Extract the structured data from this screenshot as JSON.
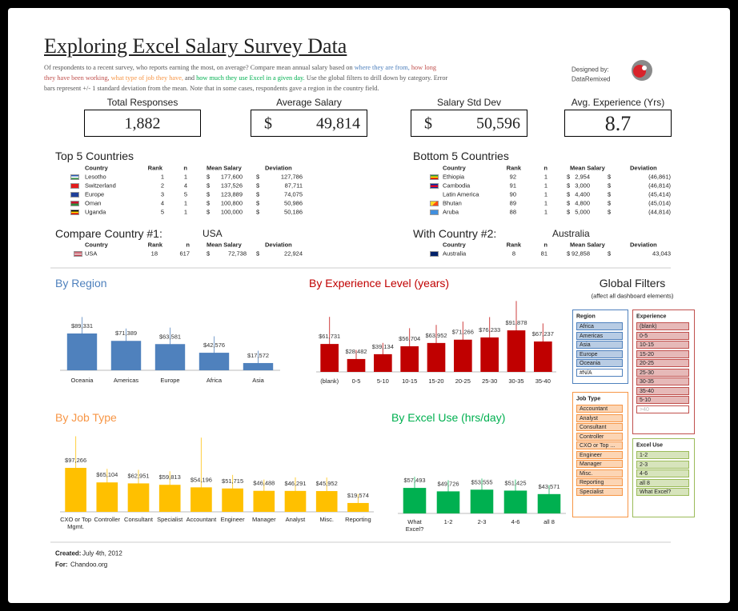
{
  "header": {
    "title": "Exploring Excel Salary Survey Data",
    "intro": [
      {
        "text": "Of respondents to a recent survey, who reports earning the most, on average? Compare mean annual salary based on",
        "color": "#555555"
      },
      {
        "text": "where they are from,",
        "color": "#4f81bd"
      },
      {
        "text": "how long they have been working,",
        "color": "#c0504d"
      },
      {
        "text": "what type of job they have,",
        "color": "#f79646"
      },
      {
        "text": "and",
        "color": "#555555"
      },
      {
        "text": "how much they use Excel in a given day.",
        "color": "#00b050"
      },
      {
        "text": "Use the global filters to drill down by category. Error bars represent +/- 1 standard deviation from the mean. Note that in some cases, respondents gave a region in the country field.",
        "color": "#555555"
      }
    ],
    "designed_by": "Designed by:",
    "designer": "DataRemixed"
  },
  "kpis": [
    {
      "label": "Total Responses",
      "value": "1,882"
    },
    {
      "label": "Average Salary",
      "currency": "$",
      "value": "49,814"
    },
    {
      "label": "Salary Std Dev",
      "currency": "$",
      "value": "50,596"
    },
    {
      "label": "Avg. Experience (Yrs)",
      "value": "8.7"
    }
  ],
  "tables": {
    "top": {
      "title": "Top 5 Countries",
      "currency": "$",
      "columns": [
        "Country",
        "Rank",
        "n",
        "Mean Salary",
        "Deviation"
      ],
      "rows": [
        [
          "Lesotho",
          "1",
          "1",
          "177,600",
          "127,786"
        ],
        [
          "Switzerland",
          "2",
          "4",
          "137,526",
          "87,711"
        ],
        [
          "Europe",
          "3",
          "5",
          "123,889",
          "74,075"
        ],
        [
          "Oman",
          "4",
          "1",
          "100,800",
          "50,986"
        ],
        [
          "Uganda",
          "5",
          "1",
          "100,000",
          "50,186"
        ]
      ]
    },
    "bottom": {
      "title": "Bottom 5 Countries",
      "currency": "$",
      "columns": [
        "Country",
        "Rank",
        "n",
        "Mean Salary",
        "Deviation"
      ],
      "rows": [
        [
          "Ethiopia",
          "92",
          "1",
          "2,954",
          "(46,861)"
        ],
        [
          "Cambodia",
          "91",
          "1",
          "3,000",
          "(46,814)"
        ],
        [
          "Latin America",
          "90",
          "1",
          "4,400",
          "(45,414)"
        ],
        [
          "Bhutan",
          "89",
          "1",
          "4,800",
          "(45,014)"
        ],
        [
          "Aruba",
          "88",
          "1",
          "5,000",
          "(44,814)"
        ]
      ]
    },
    "compare1": {
      "title": "Compare Country #1:",
      "selected": "USA",
      "currency": "$",
      "columns": [
        "Country",
        "Rank",
        "n",
        "Mean Salary",
        "Deviation"
      ],
      "rows": [
        [
          "USA",
          "18",
          "617",
          "72,738",
          "22,924"
        ]
      ]
    },
    "compare2": {
      "title": "With Country #2:",
      "selected": "Australia",
      "currency": "$",
      "columns": [
        "Country",
        "Rank",
        "n",
        "Mean Salary",
        "Deviation"
      ],
      "rows": [
        [
          "Australia",
          "8",
          "81",
          "92,858",
          "43,043"
        ]
      ]
    }
  },
  "chart_data": [
    {
      "type": "bar",
      "title": "By Region",
      "title_color": "#4f81bd",
      "color": "#4f81bd",
      "categories": [
        "Oceania",
        "Americas",
        "Europe",
        "Africa",
        "Asia"
      ],
      "values": [
        89331,
        71389,
        63581,
        42576,
        17572
      ],
      "value_labels": [
        "$89,331",
        "$71,389",
        "$63,581",
        "$42,576",
        "$17,572"
      ],
      "errors": [
        40000,
        30000,
        40000,
        40000,
        30000
      ],
      "ylim": [
        0,
        200000
      ]
    },
    {
      "type": "bar",
      "title": "By Experience Level (years)",
      "title_color": "#c00000",
      "color": "#c00000",
      "categories": [
        "(blank)",
        "0-5",
        "5-10",
        "10-15",
        "15-20",
        "20-25",
        "25-30",
        "30-35",
        "35-40"
      ],
      "values": [
        61731,
        28482,
        39134,
        56704,
        63952,
        71266,
        76233,
        91878,
        67237
      ],
      "value_labels": [
        "$61,731",
        "$28,482",
        "$39,134",
        "$56,704",
        "$63,952",
        "$71,266",
        "$76,233",
        "$91,878",
        "$67,237"
      ],
      "errors": [
        60000,
        20000,
        25000,
        40000,
        40000,
        40000,
        45000,
        65000,
        40000
      ],
      "ylim": [
        0,
        200000
      ]
    },
    {
      "type": "bar",
      "title": "By Job Type",
      "title_color": "#f79646",
      "color": "#ffc000",
      "categories": [
        "CXO or Top Mgmt.",
        "Controller",
        "Consultant",
        "Specialist",
        "Accountant",
        "Engineer",
        "Manager",
        "Analyst",
        "Misc.",
        "Reporting"
      ],
      "values": [
        97266,
        65104,
        62951,
        59813,
        54196,
        51715,
        46488,
        46291,
        45952,
        19574
      ],
      "value_labels": [
        "$97,266",
        "$65,104",
        "$62,951",
        "$59,813",
        "$54,196",
        "$51,715",
        "$46,488",
        "$46,291",
        "$45,952",
        "$19,574"
      ],
      "errors": [
        70000,
        30000,
        30000,
        30000,
        110000,
        30000,
        25000,
        30000,
        30000,
        20000
      ],
      "ylim": [
        0,
        200000
      ]
    },
    {
      "type": "bar",
      "title": "By Excel Use (hrs/day)",
      "title_color": "#00b050",
      "color": "#00b050",
      "categories": [
        "What Excel?",
        "1-2",
        "2-3",
        "4-6",
        "all 8"
      ],
      "values": [
        57493,
        49726,
        53555,
        51425,
        43571
      ],
      "value_labels": [
        "$57,493",
        "$49,726",
        "$53,555",
        "$51,425",
        "$43,571"
      ],
      "errors": [
        25000,
        25000,
        25000,
        25000,
        20000
      ],
      "ylim": [
        0,
        200000
      ]
    }
  ],
  "filters": {
    "title": "Global Filters",
    "subtitle": "(affect all dashboard elements)",
    "slicers": [
      {
        "title": "Region",
        "fill": "#b8cce4",
        "border": "#4f81bd",
        "items": [
          "Africa",
          "Americas",
          "Asia",
          "Europe",
          "Oceania",
          "#N/A"
        ],
        "dimmed_items": [
          5
        ]
      },
      {
        "title": "Experience",
        "fill": "#e6b9b8",
        "border": "#c0504d",
        "items": [
          "(blank)",
          "0-5",
          "10-15",
          "15-20",
          "20-25",
          "25-30",
          "30-35",
          "35-40",
          "5-10",
          ">40"
        ],
        "dimmed_items": [
          9
        ]
      },
      {
        "title": "Job Type",
        "fill": "#fcd5b4",
        "border": "#f79646",
        "items": [
          "Accountant",
          "Analyst",
          "Consultant",
          "Controller",
          "CXO or Top ...",
          "Engineer",
          "Manager",
          "Misc.",
          "Reporting",
          "Specialist"
        ],
        "dimmed_items": []
      },
      {
        "title": "Excel Use",
        "fill": "#d7e4bc",
        "border": "#9bbb59",
        "items": [
          "1-2",
          "2-3",
          "4-6",
          "all 8",
          "What Excel?"
        ],
        "dimmed_items": []
      }
    ]
  },
  "footer": {
    "created_label": "Created:",
    "created": "July 4th, 2012",
    "for_label": "For:",
    "for": "Chandoo.org"
  }
}
